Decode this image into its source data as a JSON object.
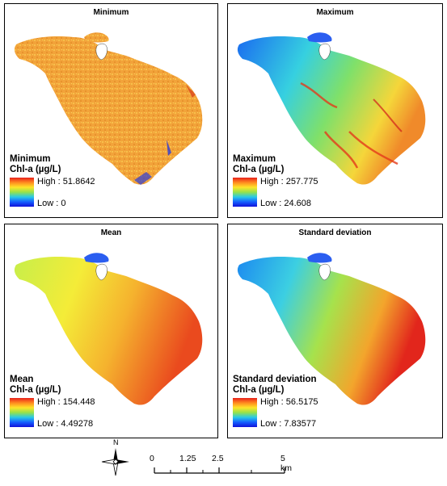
{
  "panels": [
    {
      "title": "Minimum",
      "legend_line1": "Minimum",
      "legend_line2": "Chl-a (µg/L)",
      "high": "High : 51.8642",
      "low": "Low : 0"
    },
    {
      "title": "Maximum",
      "legend_line1": "Maximum",
      "legend_line2": "Chl-a (µg/L)",
      "high": "High : 257.775",
      "low": "Low : 24.608"
    },
    {
      "title": "Mean",
      "legend_line1": "Mean",
      "legend_line2": "Chl-a (µg/L)",
      "high": "High : 154.448",
      "low": "Low : 4.49278"
    },
    {
      "title": "Standard deviation",
      "legend_line1": "Standard deviation",
      "legend_line2": "Chl-a (µg/L)",
      "high": "High : 56.5175",
      "low": "Low : 7.83577"
    }
  ],
  "north_arrow": {
    "label": "N"
  },
  "scale_bar": {
    "ticks": [
      "0",
      "1.25",
      "2.5",
      "5 km"
    ]
  },
  "colors": {
    "high": "#e8201c",
    "mid": "#ffe428",
    "low": "#1111d9"
  }
}
